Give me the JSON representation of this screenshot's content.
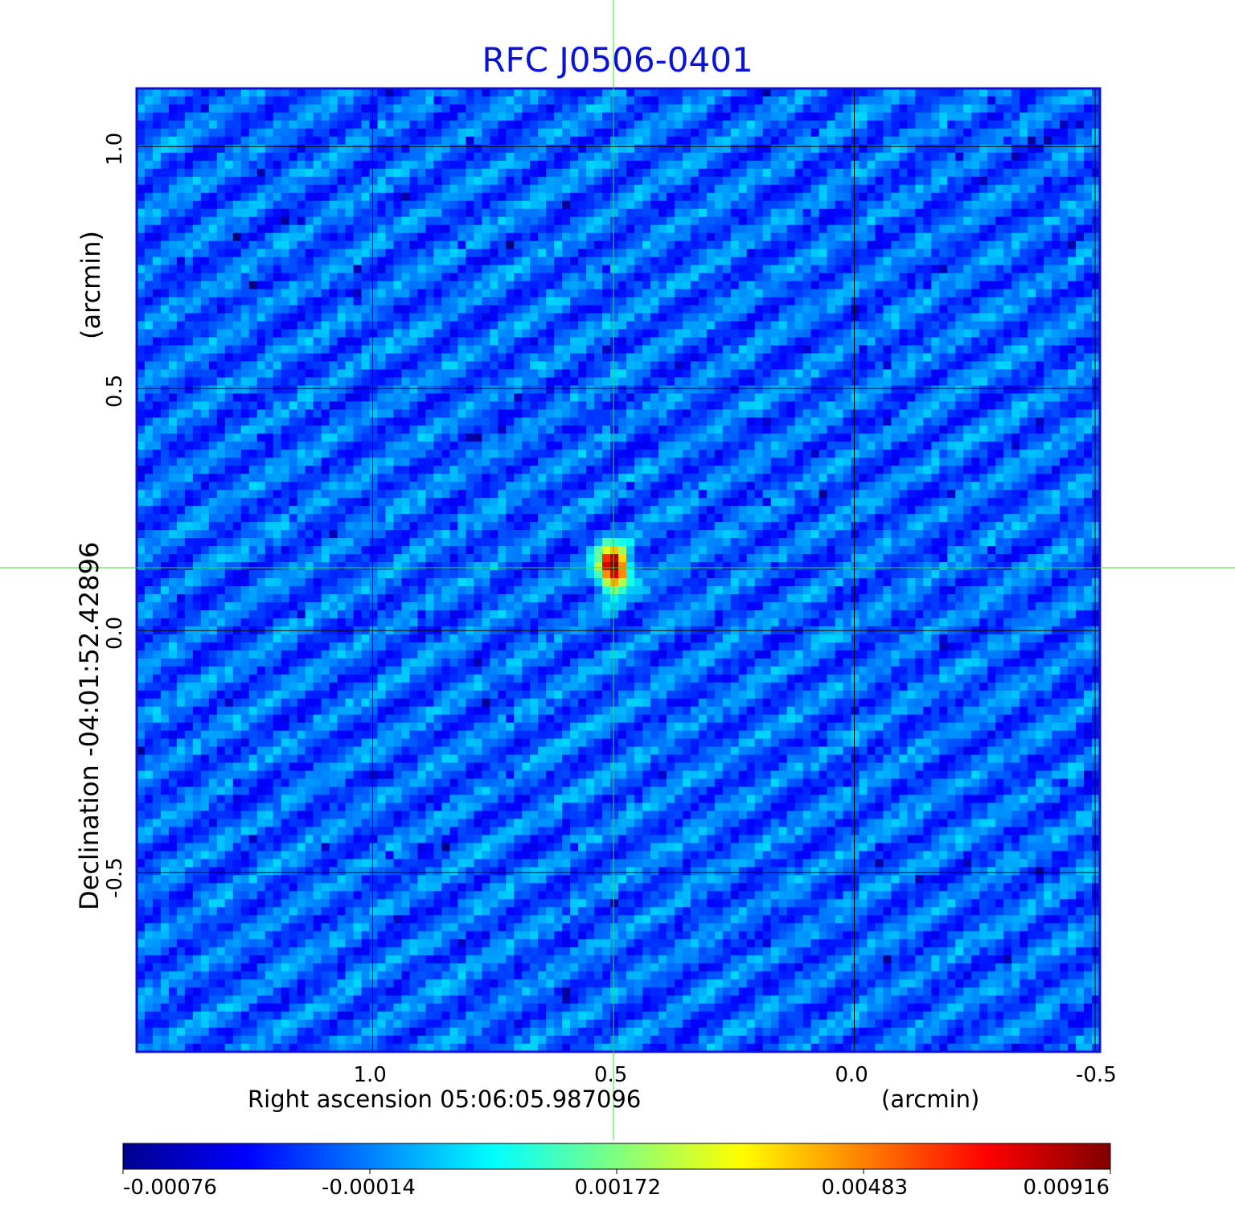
{
  "chart_data": {
    "type": "heatmap",
    "title": "RFC J0506-0401",
    "xlabel": "Right ascension  05:06:05.987096",
    "xunit": "(arcmin)",
    "ylabel": "Declination  -04:01:52.42896",
    "yunit": "(arcmin)",
    "x_ticks": [
      1.0,
      0.5,
      0.0,
      -0.5
    ],
    "x_tick_labels": [
      "1.0",
      "0.5",
      "0.0",
      "-0.5"
    ],
    "y_ticks": [
      1.0,
      0.5,
      0.0,
      -0.5
    ],
    "y_tick_labels": [
      "1.0",
      "0.5",
      "0.0",
      "-0.5"
    ],
    "xlim": [
      1.49,
      -0.51
    ],
    "ylim": [
      -0.87,
      1.12
    ],
    "grid": true,
    "colormap": "jet",
    "colorbar": {
      "ticks": [
        -0.00076,
        -0.00014,
        0.00172,
        0.00483,
        0.00916
      ],
      "tick_labels": [
        "-0.00076",
        "-0.00014",
        "0.00172",
        "0.00483",
        "0.00916"
      ],
      "colors": [
        "#00008f",
        "#0000ff",
        "#0080ff",
        "#00ffff",
        "#80ff80",
        "#ffff00",
        "#ff8000",
        "#ff0000",
        "#800000"
      ]
    },
    "source_peak": {
      "x": 0.5,
      "y": 0.13,
      "value": 0.00916
    },
    "crosshair": {
      "x": 0.5,
      "y": 0.13,
      "color": "#33dd33"
    }
  }
}
